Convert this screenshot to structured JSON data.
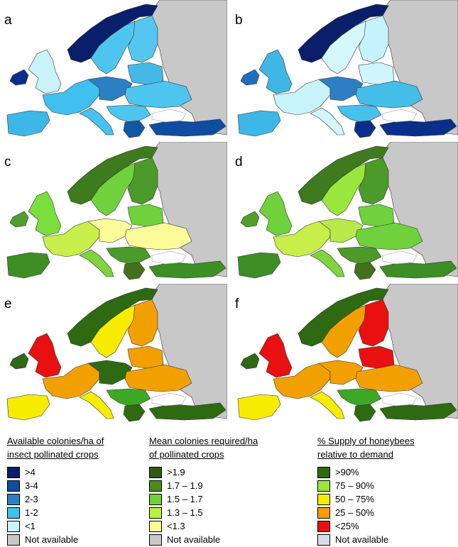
{
  "panels": [
    {
      "letter": "a",
      "colors": {
        "sea": "#ffffff",
        "russia": "#c8c8c8",
        "norway": "#0a1f6b",
        "sweden": "#4ec5ee",
        "finland": "#53c7ef",
        "uk": "#c9f3fb",
        "ireland": "#0a2f8a",
        "baltics": "#44b9e6",
        "west": "#40c0ef",
        "central": "#2d7fc4",
        "east": "#4ec5ee",
        "iberia": "#3cb7e8",
        "italy": "#48c2ee",
        "balkans": "#4ec5ee",
        "greece": "#1257a6",
        "turkey": "#0e4da0",
        "black_sea": "#ffffff"
      }
    },
    {
      "letter": "b",
      "colors": {
        "sea": "#ffffff",
        "russia": "#c8c8c8",
        "norway": "#0a1f6b",
        "sweden": "#d4f7fc",
        "finland": "#c6f3fb",
        "uk": "#40b6e6",
        "ireland": "#1d70bf",
        "baltics": "#d0f6fc",
        "west": "#c8f3fb",
        "central": "#2d7fc4",
        "east": "#44bde9",
        "iberia": "#3cb7e8",
        "italy": "#d2f6fc",
        "balkans": "#48c0ec",
        "greece": "#0a2f8a",
        "turkey": "#0a2f8a",
        "black_sea": "#ffffff"
      }
    },
    {
      "letter": "c",
      "colors": {
        "sea": "#ffffff",
        "russia": "#c8c8c8",
        "norway": "#3e7b1e",
        "sweden": "#6fd23c",
        "finland": "#4c9a2a",
        "uk": "#7ade3c",
        "ireland": "#4e9f2b",
        "baltics": "#6fd23c",
        "west": "#c8ee4a",
        "central": "#fbfb9a",
        "east": "#fbfb9a",
        "iberia": "#3d8e24",
        "italy": "#7ed53e",
        "balkans": "#4c9a2a",
        "greece": "#44701e",
        "turkey": "#3d8e24",
        "black_sea": "#ffffff"
      }
    },
    {
      "letter": "d",
      "colors": {
        "sea": "#ffffff",
        "russia": "#c8c8c8",
        "norway": "#3e7b1e",
        "sweden": "#9be63c",
        "finland": "#4c9a2a",
        "uk": "#6fd23c",
        "ireland": "#4e9f2b",
        "baltics": "#6fd23c",
        "west": "#c8ee4a",
        "central": "#b8e84a",
        "east": "#6fd23c",
        "iberia": "#3d8e24",
        "italy": "#7ed53e",
        "balkans": "#4c9a2a",
        "greece": "#44701e",
        "turkey": "#3d8e24",
        "black_sea": "#ffffff"
      }
    },
    {
      "letter": "e",
      "colors": {
        "sea": "#ffffff",
        "russia": "#c8c8c8",
        "norway": "#2e6a12",
        "sweden": "#f7ec00",
        "finland": "#f2a000",
        "uk": "#e81010",
        "ireland": "#2e6a12",
        "baltics": "#f2a000",
        "west": "#f2a000",
        "central": "#2e6a12",
        "east": "#f2a000",
        "iberia": "#f7ec00",
        "italy": "#f7ec00",
        "balkans": "#3ca824",
        "greece": "#2e6a12",
        "turkey": "#2e6a12",
        "black_sea": "#ffffff"
      }
    },
    {
      "letter": "f",
      "colors": {
        "sea": "#ffffff",
        "russia": "#c8c8c8",
        "norway": "#2e6a12",
        "sweden": "#f2a000",
        "finland": "#e81010",
        "uk": "#e81010",
        "ireland": "#2e6a12",
        "baltics": "#e81010",
        "west": "#f2a000",
        "central": "#f2a000",
        "east": "#f2a000",
        "iberia": "#f7ec00",
        "italy": "#f7ec00",
        "balkans": "#3ca824",
        "greece": "#2e6a12",
        "turkey": "#2e6a12",
        "black_sea": "#ffffff"
      }
    }
  ],
  "legends": [
    {
      "title_line1": "Available colonies/ha of",
      "title_line2": "insect pollinated crops",
      "items": [
        {
          "label": ">4",
          "color": "#0a1f6b"
        },
        {
          "label": "3-4",
          "color": "#0e4da0"
        },
        {
          "label": "2-3",
          "color": "#2d7fc4"
        },
        {
          "label": "1-2",
          "color": "#40c0ef"
        },
        {
          "label": "<1",
          "color": "#c9f3fb"
        },
        {
          "label": "Not available",
          "color": "#c8c8c8"
        }
      ]
    },
    {
      "title_line1": "Mean colonies required/ha",
      "title_line2": "of pollinated crops",
      "items": [
        {
          "label": ">1.9",
          "color": "#2e5a12"
        },
        {
          "label": "1.7 – 1.9",
          "color": "#4c8a1e"
        },
        {
          "label": "1.5 – 1.7",
          "color": "#6fd23c"
        },
        {
          "label": "1.3 – 1.5",
          "color": "#b8f04a"
        },
        {
          "label": "<1.3",
          "color": "#fbfb9a"
        },
        {
          "label": "Not available",
          "color": "#c8c8c8"
        }
      ]
    },
    {
      "title_line1": "% Supply of honeybees",
      "title_line2": "relative to demand",
      "items": [
        {
          "label": ">90%",
          "color": "#2e6a12"
        },
        {
          "label": "75 – 90%",
          "color": "#9be63c"
        },
        {
          "label": "50 – 75%",
          "color": "#f7ec00"
        },
        {
          "label": "25 – 50%",
          "color": "#f2a000"
        },
        {
          "label": "<25%",
          "color": "#e81010"
        },
        {
          "label": "Not available",
          "color": "#dcdce8"
        }
      ]
    }
  ]
}
